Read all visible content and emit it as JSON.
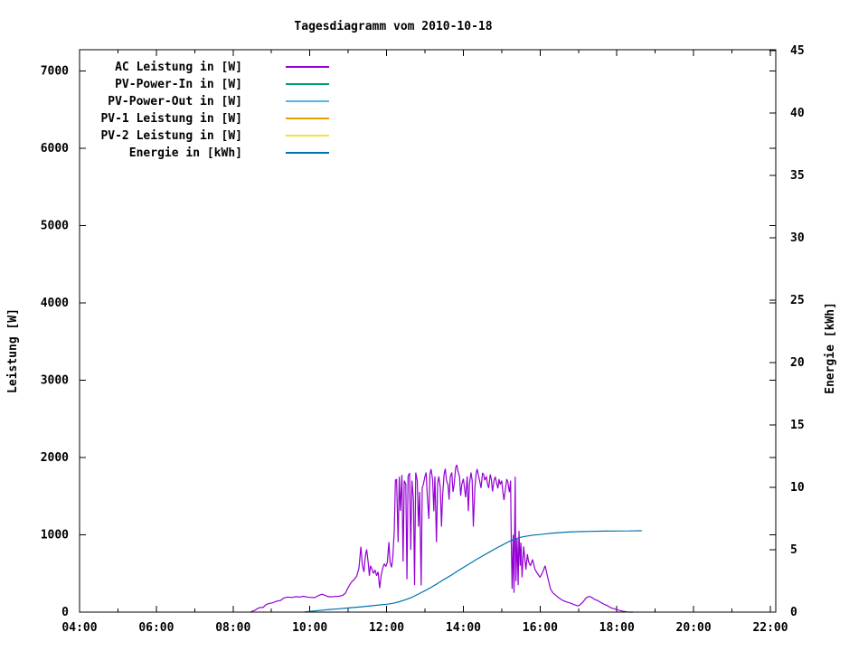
{
  "colors": {
    "background": "#ffffff",
    "axis": "#000000",
    "ac_power": "#9400d3",
    "pv_power_in": "#009e73",
    "pv_power_out": "#56b4e9",
    "pv1_power": "#e69f00",
    "pv2_power": "#f0e442",
    "energy": "#0072b2"
  },
  "chart_data": {
    "type": "line",
    "title": "Tagesdiagramm vom 2010-10-18",
    "legend_position": "top-left-inside",
    "grid": false,
    "x_axis": {
      "label": "",
      "range_hours": [
        4,
        22.141
      ],
      "major_ticks": [
        {
          "h": 4,
          "label": "04:00"
        },
        {
          "h": 6,
          "label": "06:00"
        },
        {
          "h": 8,
          "label": "08:00"
        },
        {
          "h": 10,
          "label": "10:00"
        },
        {
          "h": 12,
          "label": "12:00"
        },
        {
          "h": 14,
          "label": "14:00"
        },
        {
          "h": 16,
          "label": "16:00"
        },
        {
          "h": 18,
          "label": "18:00"
        },
        {
          "h": 20,
          "label": "20:00"
        },
        {
          "h": 22,
          "label": "22:00"
        }
      ],
      "minor_tick_hours": [
        5,
        7,
        9,
        11,
        13,
        15,
        17,
        19,
        21
      ]
    },
    "y_axis_left": {
      "label": "Leistung [W]",
      "range": [
        0,
        7273
      ],
      "ticks": [
        0,
        1000,
        2000,
        3000,
        4000,
        5000,
        6000,
        7000
      ],
      "tick_labels": [
        "0",
        "1000",
        "2000",
        "3000",
        "4000",
        "5000",
        "6000",
        "7000"
      ],
      "mirrored_on_right": true
    },
    "y_axis_right": {
      "label": "Energie [kWh]",
      "range": [
        0,
        45.07
      ],
      "ticks": [
        0,
        5,
        10,
        15,
        20,
        25,
        30,
        35,
        40,
        45
      ],
      "tick_labels": [
        "0",
        "5",
        "10",
        "15",
        "20",
        "25",
        "30",
        "35",
        "40",
        "45"
      ]
    },
    "series": [
      {
        "name": "AC Leistung in [W]",
        "color": "#9400d3",
        "axis": "left",
        "points": [
          [
            8.45,
            0
          ],
          [
            8.5,
            10
          ],
          [
            8.57,
            25
          ],
          [
            8.63,
            45
          ],
          [
            8.7,
            60
          ],
          [
            8.78,
            60
          ],
          [
            8.85,
            95
          ],
          [
            8.93,
            110
          ],
          [
            9.03,
            120
          ],
          [
            9.13,
            140
          ],
          [
            9.23,
            150
          ],
          [
            9.33,
            185
          ],
          [
            9.43,
            195
          ],
          [
            9.53,
            190
          ],
          [
            9.63,
            200
          ],
          [
            9.73,
            195
          ],
          [
            9.83,
            205
          ],
          [
            9.93,
            195
          ],
          [
            10.03,
            190
          ],
          [
            10.13,
            188
          ],
          [
            10.23,
            215
          ],
          [
            10.32,
            232
          ],
          [
            10.4,
            215
          ],
          [
            10.48,
            200
          ],
          [
            10.57,
            198
          ],
          [
            10.65,
            202
          ],
          [
            10.75,
            205
          ],
          [
            10.85,
            215
          ],
          [
            10.93,
            245
          ],
          [
            11.0,
            320
          ],
          [
            11.08,
            385
          ],
          [
            11.15,
            420
          ],
          [
            11.22,
            465
          ],
          [
            11.28,
            570
          ],
          [
            11.33,
            845
          ],
          [
            11.37,
            610
          ],
          [
            11.41,
            520
          ],
          [
            11.45,
            735
          ],
          [
            11.48,
            810
          ],
          [
            11.52,
            645
          ],
          [
            11.55,
            470
          ],
          [
            11.58,
            600
          ],
          [
            11.62,
            555
          ],
          [
            11.66,
            500
          ],
          [
            11.7,
            545
          ],
          [
            11.74,
            470
          ],
          [
            11.78,
            520
          ],
          [
            11.82,
            310
          ],
          [
            11.86,
            480
          ],
          [
            11.9,
            570
          ],
          [
            11.94,
            625
          ],
          [
            11.98,
            590
          ],
          [
            12.02,
            645
          ],
          [
            12.06,
            905
          ],
          [
            12.09,
            645
          ],
          [
            12.13,
            580
          ],
          [
            12.16,
            700
          ],
          [
            12.2,
            1060
          ],
          [
            12.23,
            1705
          ],
          [
            12.26,
            1720
          ],
          [
            12.3,
            905
          ],
          [
            12.33,
            1750
          ],
          [
            12.36,
            1310
          ],
          [
            12.4,
            1775
          ],
          [
            12.43,
            655
          ],
          [
            12.46,
            1700
          ],
          [
            12.5,
            1655
          ],
          [
            12.53,
            425
          ],
          [
            12.56,
            1755
          ],
          [
            12.6,
            1800
          ],
          [
            12.63,
            805
          ],
          [
            12.66,
            1700
          ],
          [
            12.7,
            1455
          ],
          [
            12.73,
            350
          ],
          [
            12.76,
            1805
          ],
          [
            12.8,
            1700
          ],
          [
            12.83,
            1105
          ],
          [
            12.86,
            1555
          ],
          [
            12.9,
            345
          ],
          [
            12.93,
            1605
          ],
          [
            12.96,
            1655
          ],
          [
            13.0,
            1755
          ],
          [
            13.03,
            1805
          ],
          [
            13.06,
            1505
          ],
          [
            13.1,
            1205
          ],
          [
            13.13,
            1785
          ],
          [
            13.16,
            1850
          ],
          [
            13.2,
            1705
          ],
          [
            13.23,
            1305
          ],
          [
            13.26,
            1755
          ],
          [
            13.3,
            905
          ],
          [
            13.33,
            1655
          ],
          [
            13.36,
            1755
          ],
          [
            13.4,
            1605
          ],
          [
            13.43,
            1105
          ],
          [
            13.46,
            1505
          ],
          [
            13.5,
            1785
          ],
          [
            13.53,
            1855
          ],
          [
            13.56,
            1705
          ],
          [
            13.6,
            1645
          ],
          [
            13.63,
            1455
          ],
          [
            13.66,
            1755
          ],
          [
            13.7,
            1805
          ],
          [
            13.73,
            1555
          ],
          [
            13.76,
            1655
          ],
          [
            13.8,
            1870
          ],
          [
            13.83,
            1905
          ],
          [
            13.86,
            1825
          ],
          [
            13.9,
            1755
          ],
          [
            13.93,
            1505
          ],
          [
            13.96,
            1655
          ],
          [
            14.0,
            1725
          ],
          [
            14.03,
            1605
          ],
          [
            14.06,
            1485
          ],
          [
            14.1,
            1755
          ],
          [
            14.13,
            1305
          ],
          [
            14.16,
            1655
          ],
          [
            14.2,
            1805
          ],
          [
            14.23,
            1705
          ],
          [
            14.26,
            1105
          ],
          [
            14.3,
            1605
          ],
          [
            14.33,
            1785
          ],
          [
            14.36,
            1850
          ],
          [
            14.4,
            1755
          ],
          [
            14.43,
            1685
          ],
          [
            14.46,
            1605
          ],
          [
            14.5,
            1800
          ],
          [
            14.53,
            1780
          ],
          [
            14.56,
            1705
          ],
          [
            14.6,
            1755
          ],
          [
            14.63,
            1655
          ],
          [
            14.66,
            1605
          ],
          [
            14.7,
            1780
          ],
          [
            14.73,
            1720
          ],
          [
            14.76,
            1560
          ],
          [
            14.8,
            1700
          ],
          [
            14.83,
            1750
          ],
          [
            14.86,
            1680
          ],
          [
            14.9,
            1600
          ],
          [
            14.93,
            1720
          ],
          [
            14.96,
            1650
          ],
          [
            15.0,
            1700
          ],
          [
            15.03,
            1550
          ],
          [
            15.06,
            1450
          ],
          [
            15.1,
            1600
          ],
          [
            15.13,
            1720
          ],
          [
            15.16,
            1680
          ],
          [
            15.2,
            1550
          ],
          [
            15.23,
            1700
          ],
          [
            15.25,
            900
          ],
          [
            15.27,
            300
          ],
          [
            15.3,
            1000
          ],
          [
            15.32,
            250
          ],
          [
            15.35,
            1750
          ],
          [
            15.37,
            400
          ],
          [
            15.4,
            950
          ],
          [
            15.43,
            350
          ],
          [
            15.45,
            1050
          ],
          [
            15.48,
            600
          ],
          [
            15.5,
            900
          ],
          [
            15.53,
            450
          ],
          [
            15.57,
            850
          ],
          [
            15.6,
            700
          ],
          [
            15.63,
            550
          ],
          [
            15.67,
            750
          ],
          [
            15.7,
            650
          ],
          [
            15.75,
            600
          ],
          [
            15.8,
            680
          ],
          [
            15.87,
            550
          ],
          [
            15.93,
            500
          ],
          [
            16.0,
            450
          ],
          [
            16.07,
            520
          ],
          [
            16.13,
            600
          ],
          [
            16.2,
            450
          ],
          [
            16.27,
            300
          ],
          [
            16.33,
            250
          ],
          [
            16.4,
            220
          ],
          [
            16.5,
            180
          ],
          [
            16.6,
            150
          ],
          [
            16.7,
            130
          ],
          [
            16.8,
            115
          ],
          [
            16.9,
            95
          ],
          [
            17.0,
            80
          ],
          [
            17.1,
            120
          ],
          [
            17.2,
            185
          ],
          [
            17.28,
            205
          ],
          [
            17.35,
            190
          ],
          [
            17.42,
            165
          ],
          [
            17.5,
            150
          ],
          [
            17.58,
            125
          ],
          [
            17.67,
            100
          ],
          [
            17.75,
            85
          ],
          [
            17.83,
            60
          ],
          [
            17.92,
            45
          ],
          [
            18.0,
            35
          ],
          [
            18.08,
            20
          ],
          [
            18.17,
            10
          ],
          [
            18.25,
            3
          ],
          [
            18.33,
            0
          ],
          [
            18.42,
            0
          ]
        ]
      },
      {
        "name": "PV-Power-In in [W]",
        "color": "#009e73",
        "axis": "left",
        "points": []
      },
      {
        "name": "PV-Power-Out in [W]",
        "color": "#56b4e9",
        "axis": "left",
        "points": []
      },
      {
        "name": "PV-1 Leistung in [W]",
        "color": "#e69f00",
        "axis": "left",
        "points": []
      },
      {
        "name": "PV-2 Leistung in [W]",
        "color": "#f0e442",
        "axis": "left",
        "points": []
      },
      {
        "name": "Energie in [kWh]",
        "color": "#0072b2",
        "axis": "right",
        "points": [
          [
            9.85,
            0
          ],
          [
            10.0,
            0.06
          ],
          [
            10.17,
            0.11
          ],
          [
            10.33,
            0.16
          ],
          [
            10.5,
            0.21
          ],
          [
            10.75,
            0.27
          ],
          [
            11.0,
            0.33
          ],
          [
            11.25,
            0.4
          ],
          [
            11.5,
            0.47
          ],
          [
            11.75,
            0.55
          ],
          [
            12.0,
            0.63
          ],
          [
            12.17,
            0.71
          ],
          [
            12.33,
            0.83
          ],
          [
            12.5,
            1.0
          ],
          [
            12.67,
            1.2
          ],
          [
            12.83,
            1.45
          ],
          [
            13.0,
            1.72
          ],
          [
            13.17,
            2.0
          ],
          [
            13.33,
            2.3
          ],
          [
            13.5,
            2.62
          ],
          [
            13.67,
            2.93
          ],
          [
            13.83,
            3.25
          ],
          [
            14.0,
            3.58
          ],
          [
            14.17,
            3.9
          ],
          [
            14.33,
            4.2
          ],
          [
            14.5,
            4.5
          ],
          [
            14.67,
            4.8
          ],
          [
            14.83,
            5.08
          ],
          [
            15.0,
            5.35
          ],
          [
            15.17,
            5.62
          ],
          [
            15.33,
            5.85
          ],
          [
            15.5,
            6.0
          ],
          [
            15.67,
            6.1
          ],
          [
            15.83,
            6.17
          ],
          [
            16.0,
            6.22
          ],
          [
            16.17,
            6.28
          ],
          [
            16.33,
            6.33
          ],
          [
            16.5,
            6.37
          ],
          [
            16.75,
            6.42
          ],
          [
            17.0,
            6.45
          ],
          [
            17.33,
            6.47
          ],
          [
            17.67,
            6.49
          ],
          [
            18.0,
            6.5
          ],
          [
            18.33,
            6.51
          ],
          [
            18.65,
            6.52
          ]
        ]
      }
    ]
  }
}
